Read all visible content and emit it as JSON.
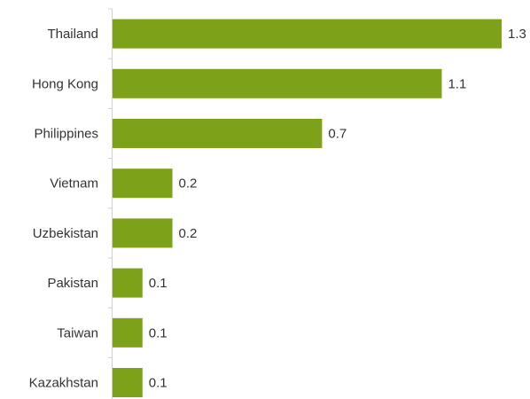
{
  "chart_data": {
    "type": "bar",
    "orientation": "horizontal",
    "categories": [
      "Thailand",
      "Hong Kong",
      "Philippines",
      "Vietnam",
      "Uzbekistan",
      "Pakistan",
      "Taiwan",
      "Kazakhstan"
    ],
    "values": [
      1.3,
      1.1,
      0.7,
      0.2,
      0.2,
      0.1,
      0.1,
      0.1
    ],
    "value_labels": [
      "1.3",
      "1.1",
      "0.7",
      "0.2",
      "0.2",
      "0.1",
      "0.1",
      "0.1"
    ],
    "title": "",
    "xlabel": "",
    "ylabel": "",
    "xlim": [
      0,
      1.3
    ],
    "grid": false,
    "legend": "none",
    "bar_color": "#7ea11a",
    "axis_color": "#d0d0d0",
    "text_color": "#333333"
  }
}
